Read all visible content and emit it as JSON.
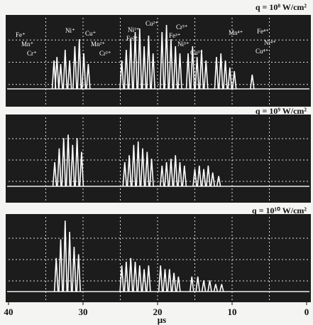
{
  "chart_data": [
    {
      "type": "spike",
      "title": "q = 10⁸ W/cm²",
      "xlim": [
        40,
        0
      ],
      "ylim": [
        0,
        1
      ],
      "color": "#ffffff",
      "annotations": [
        "Fe⁺",
        "Mn⁺",
        "Cr⁺",
        "Ni⁺",
        "Cu⁺",
        "Mn²⁺",
        "Cr²⁺",
        "Ni²⁺",
        "Fe²⁺",
        "Cu²⁺",
        "Cr³⁺",
        "Fe³⁺",
        "Ni³⁺",
        "Cu³⁺",
        "Mn⁴⁺",
        "Fe⁴⁺",
        "Ni⁴⁺",
        "Cu⁴⁺"
      ],
      "x": [
        33.9,
        33.5,
        33.0,
        32.4,
        31.8,
        31.1,
        30.5,
        29.9,
        29.3,
        24.8,
        24.2,
        23.6,
        23.0,
        22.4,
        21.8,
        21.2,
        20.6,
        19.4,
        18.8,
        18.2,
        17.6,
        17.0,
        15.9,
        15.3,
        14.7,
        14.1,
        13.5,
        12.1,
        11.5,
        10.9,
        10.3,
        9.7,
        7.3
      ],
      "values": [
        0.4,
        0.45,
        0.35,
        0.55,
        0.4,
        0.6,
        0.7,
        0.5,
        0.35,
        0.4,
        0.55,
        0.7,
        0.8,
        0.85,
        0.6,
        0.75,
        0.5,
        0.8,
        0.9,
        0.7,
        0.6,
        0.5,
        0.5,
        0.6,
        0.45,
        0.55,
        0.4,
        0.45,
        0.5,
        0.4,
        0.3,
        0.25,
        0.2
      ]
    },
    {
      "type": "spike",
      "title": "q = 10⁹ W/cm²",
      "xlim": [
        40,
        0
      ],
      "ylim": [
        0,
        1
      ],
      "color": "#ffffff",
      "x": [
        33.8,
        33.2,
        32.6,
        32.0,
        31.4,
        30.8,
        30.2,
        24.4,
        23.8,
        23.2,
        22.6,
        22.0,
        21.4,
        20.8,
        19.4,
        18.8,
        18.2,
        17.6,
        17.0,
        16.4,
        15.0,
        14.4,
        13.8,
        13.2,
        12.6,
        11.8
      ],
      "values": [
        0.35,
        0.55,
        0.7,
        0.75,
        0.6,
        0.7,
        0.5,
        0.35,
        0.45,
        0.6,
        0.65,
        0.55,
        0.5,
        0.4,
        0.3,
        0.35,
        0.4,
        0.45,
        0.35,
        0.3,
        0.25,
        0.3,
        0.25,
        0.3,
        0.2,
        0.15
      ]
    },
    {
      "type": "spike",
      "title": "q = 10¹⁰ W/cm²",
      "xlim": [
        40,
        0
      ],
      "ylim": [
        0,
        1
      ],
      "color": "#ffffff",
      "xticks": [
        40,
        30,
        20,
        10,
        0
      ],
      "xlabel": "μs",
      "x": [
        33.6,
        33.0,
        32.4,
        31.8,
        31.2,
        30.6,
        24.8,
        24.2,
        23.6,
        23.0,
        22.4,
        21.8,
        21.2,
        19.6,
        19.0,
        18.4,
        17.8,
        17.2,
        15.4,
        14.6,
        13.8,
        13.0,
        12.2,
        11.4
      ],
      "values": [
        0.45,
        0.7,
        0.95,
        0.8,
        0.6,
        0.5,
        0.35,
        0.4,
        0.45,
        0.4,
        0.35,
        0.3,
        0.35,
        0.35,
        0.3,
        0.3,
        0.25,
        0.2,
        0.2,
        0.2,
        0.15,
        0.15,
        0.1,
        0.1
      ]
    }
  ]
}
